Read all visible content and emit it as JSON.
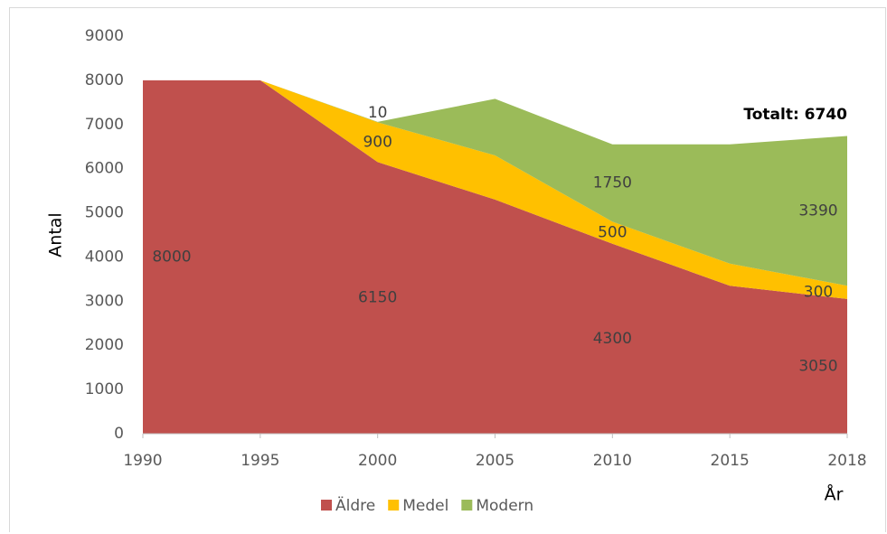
{
  "chart_data": {
    "type": "stacked_area",
    "categories": [
      "1990",
      "1995",
      "2000",
      "2005",
      "2010",
      "2015",
      "2018"
    ],
    "series": [
      {
        "name": "Äldre",
        "color": "#c0504d",
        "values": [
          8000,
          8000,
          6150,
          5300,
          4300,
          3350,
          3050
        ],
        "value_labels": [
          "8000",
          null,
          "6150",
          null,
          "4300",
          null,
          "3050"
        ]
      },
      {
        "name": "Medel",
        "color": "#ffc000",
        "values": [
          0,
          0,
          900,
          1000,
          500,
          500,
          300
        ],
        "value_labels": [
          null,
          null,
          "900",
          null,
          "500",
          null,
          "300"
        ]
      },
      {
        "name": "Modern",
        "color": "#9bbb59",
        "values": [
          0,
          0,
          10,
          1280,
          1750,
          2700,
          3390
        ],
        "value_labels": [
          null,
          null,
          "10",
          null,
          "1750",
          null,
          "3390"
        ]
      }
    ],
    "ylim": [
      0,
      9000
    ],
    "yticks": [
      0,
      1000,
      2000,
      3000,
      4000,
      5000,
      6000,
      7000,
      8000,
      9000
    ],
    "y_label": "Antal",
    "x_label": "År",
    "annotation": "Totalt: 6740",
    "legend": "bottom"
  }
}
